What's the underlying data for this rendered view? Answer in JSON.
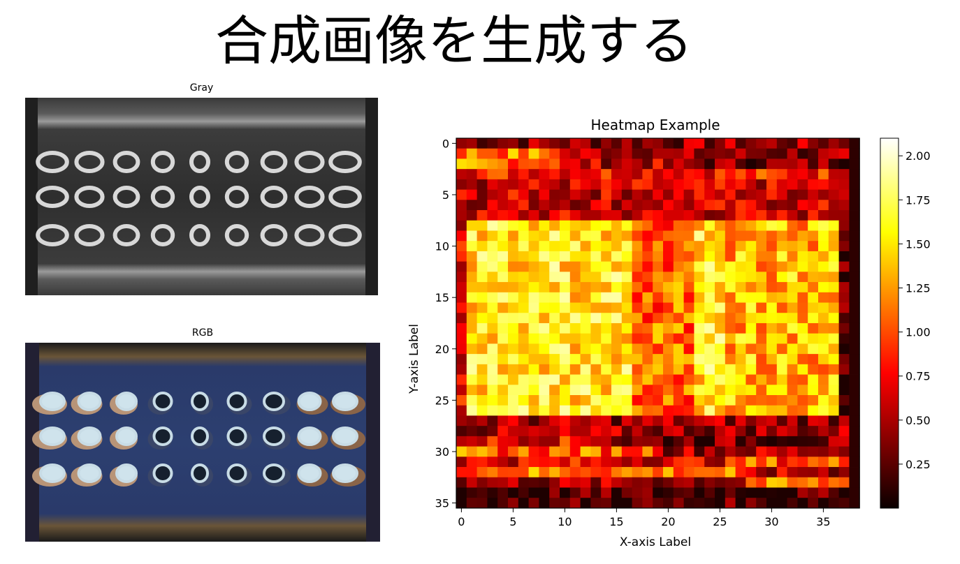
{
  "page": {
    "title": "合成画像を生成する"
  },
  "gray_panel": {
    "title": "Gray"
  },
  "rgb_panel": {
    "title": "RGB"
  },
  "colors": {
    "background": "#ffffff",
    "axis": "#000000"
  },
  "chart_data": {
    "type": "heatmap",
    "title": "Heatmap Example",
    "xlabel": "X-axis Label",
    "ylabel": "Y-axis Label",
    "cols": 39,
    "rows": 36,
    "colormap": "hot",
    "x_ticks": [
      0,
      5,
      10,
      15,
      20,
      25,
      30,
      35
    ],
    "y_ticks": [
      0,
      5,
      10,
      15,
      20,
      25,
      30,
      35
    ],
    "colorbar_ticks": [
      "2.00",
      "1.75",
      "1.50",
      "1.25",
      "1.00",
      "0.75",
      "0.50",
      "0.25"
    ],
    "colorbar_values": [
      2.0,
      1.75,
      1.5,
      1.25,
      1.0,
      0.75,
      0.5,
      0.25
    ],
    "vmin": 0.0,
    "vmax": 2.1,
    "grid": false,
    "legend": "colorbar-right"
  }
}
